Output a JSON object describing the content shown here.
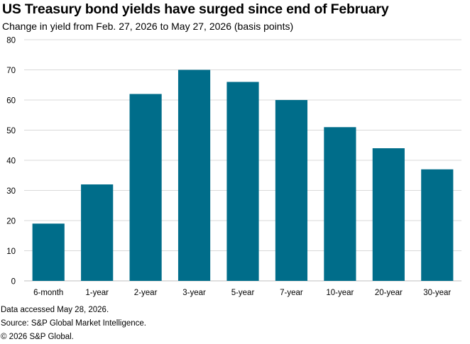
{
  "chart_data": {
    "type": "bar",
    "title": "US Treasury bond yields have surged since end of February",
    "subtitle": "Change in yield from Feb. 27, 2026 to May 27, 2026 (basis points)",
    "categories": [
      "6-month",
      "1-year",
      "2-year",
      "3-year",
      "5-year",
      "7-year",
      "10-year",
      "20-year",
      "30-year"
    ],
    "values": [
      19,
      32,
      62,
      70,
      66,
      60,
      51,
      44,
      37
    ],
    "xlabel": "",
    "ylabel": "",
    "ylim": [
      0,
      80
    ],
    "yticks": [
      0,
      10,
      20,
      30,
      40,
      50,
      60,
      70,
      80
    ],
    "grid": true,
    "legend": "none",
    "bar_color": "#006d8a",
    "grid_color": "#d9d9d9"
  },
  "footnotes": {
    "accessed": "Data accessed May 28, 2026.",
    "source": "Source: S&P Global Market Intelligence.",
    "copyright": "© 2026 S&P Global."
  }
}
